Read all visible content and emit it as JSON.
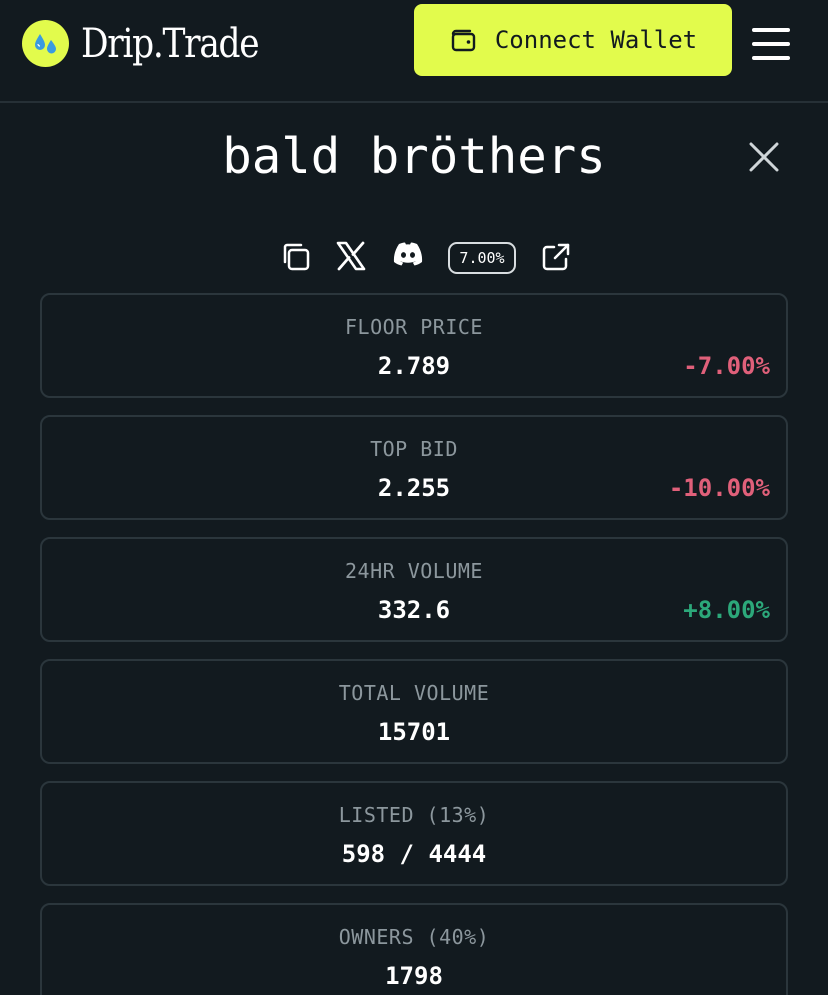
{
  "header": {
    "logo_text": "Drip.Trade",
    "connect_label": "Connect Wallet"
  },
  "collection": {
    "name": "bald bröthers",
    "royalty": "7.00%"
  },
  "stats": [
    {
      "label": "FLOOR PRICE",
      "value": "2.789",
      "change": "-7.00%",
      "trend": "neg"
    },
    {
      "label": "TOP BID",
      "value": "2.255",
      "change": "-10.00%",
      "trend": "neg"
    },
    {
      "label": "24HR VOLUME",
      "value": "332.6",
      "change": "+8.00%",
      "trend": "pos"
    },
    {
      "label": "TOTAL VOLUME",
      "value": "15701"
    },
    {
      "label": "LISTED (13%)",
      "value": "598 / 4444"
    },
    {
      "label": "OWNERS (40%)",
      "value": "1798"
    }
  ],
  "colors": {
    "background": "#121a1f",
    "accent": "#e2fb4c",
    "negative": "#e0607a",
    "positive": "#2ca87a",
    "muted_text": "#8c979d",
    "card_border": "#2b363c"
  },
  "icons": [
    "drip-logo-icon",
    "wallet-icon",
    "menu-icon",
    "close-icon",
    "copy-icon",
    "x-twitter-icon",
    "discord-icon",
    "external-link-icon"
  ]
}
